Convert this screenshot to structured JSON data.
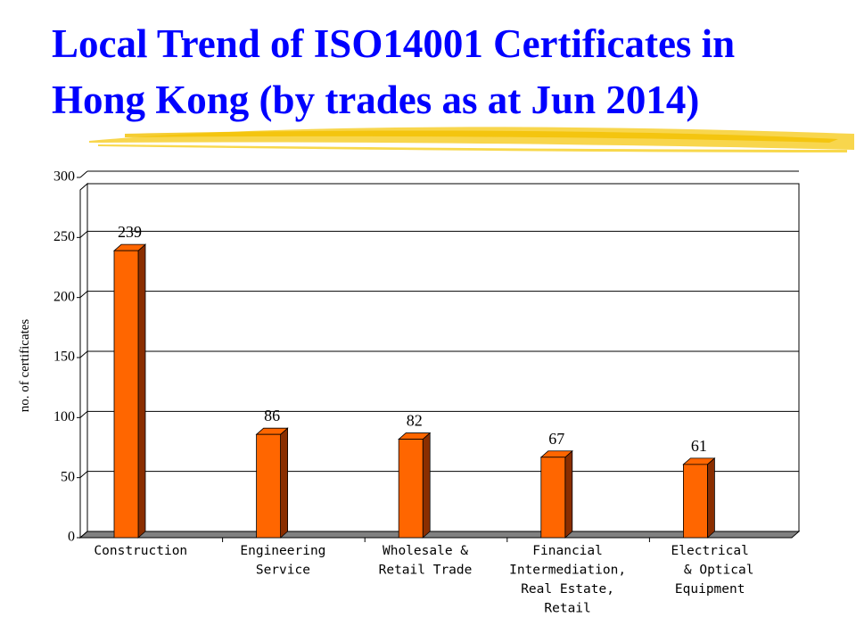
{
  "chart_data": {
    "type": "bar3d",
    "title": [
      "Local Trend of ISO14001 Certificates in",
      "Hong Kong (by trades as at Jun 2014)"
    ],
    "y_label": "no. of certificates",
    "categories": [
      [
        "Construction"
      ],
      [
        "Engineering",
        "Service"
      ],
      [
        "Wholesale &",
        "Retail Trade"
      ],
      [
        "Financial",
        "Intermediation,",
        "Real Estate,",
        "Retail"
      ],
      [
        "Electrical",
        "& Optical",
        "Equipment"
      ]
    ],
    "values": [
      239,
      86,
      82,
      67,
      61
    ],
    "color": "#ff6600",
    "side_color": "#8a2e00",
    "ylim": [
      0,
      300
    ],
    "yticks": [
      0,
      50,
      100,
      150,
      200,
      250,
      300
    ],
    "grid": true
  }
}
